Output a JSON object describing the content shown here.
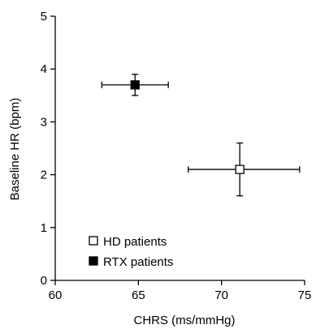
{
  "chart_data": {
    "type": "scatter",
    "xlabel": "CHRS (ms/mmHg)",
    "ylabel": "Baseline HR (bpm)",
    "xlim": [
      60,
      75
    ],
    "ylim": [
      0,
      5
    ],
    "xticks": [
      60,
      65,
      70,
      75
    ],
    "yticks": [
      0,
      1,
      2,
      3,
      4,
      5
    ],
    "x_tick_labels": [
      "60",
      "65",
      "70",
      "75"
    ],
    "y_tick_labels": [
      "0",
      "1",
      "2",
      "3",
      "4",
      "5"
    ],
    "grid": false,
    "legend_position": "bottom-left",
    "series": [
      {
        "name": "HD patients",
        "marker": "open-square",
        "color": "#000000",
        "points": [
          {
            "x": 71.1,
            "y": 2.1,
            "x_err": [
              3.1,
              3.6
            ],
            "y_err": [
              0.5,
              0.5
            ]
          }
        ]
      },
      {
        "name": "RTX patients",
        "marker": "filled-square",
        "color": "#000000",
        "points": [
          {
            "x": 64.8,
            "y": 3.7,
            "x_err": [
              2.0,
              2.0
            ],
            "y_err": [
              0.2,
              0.2
            ]
          }
        ]
      }
    ]
  }
}
